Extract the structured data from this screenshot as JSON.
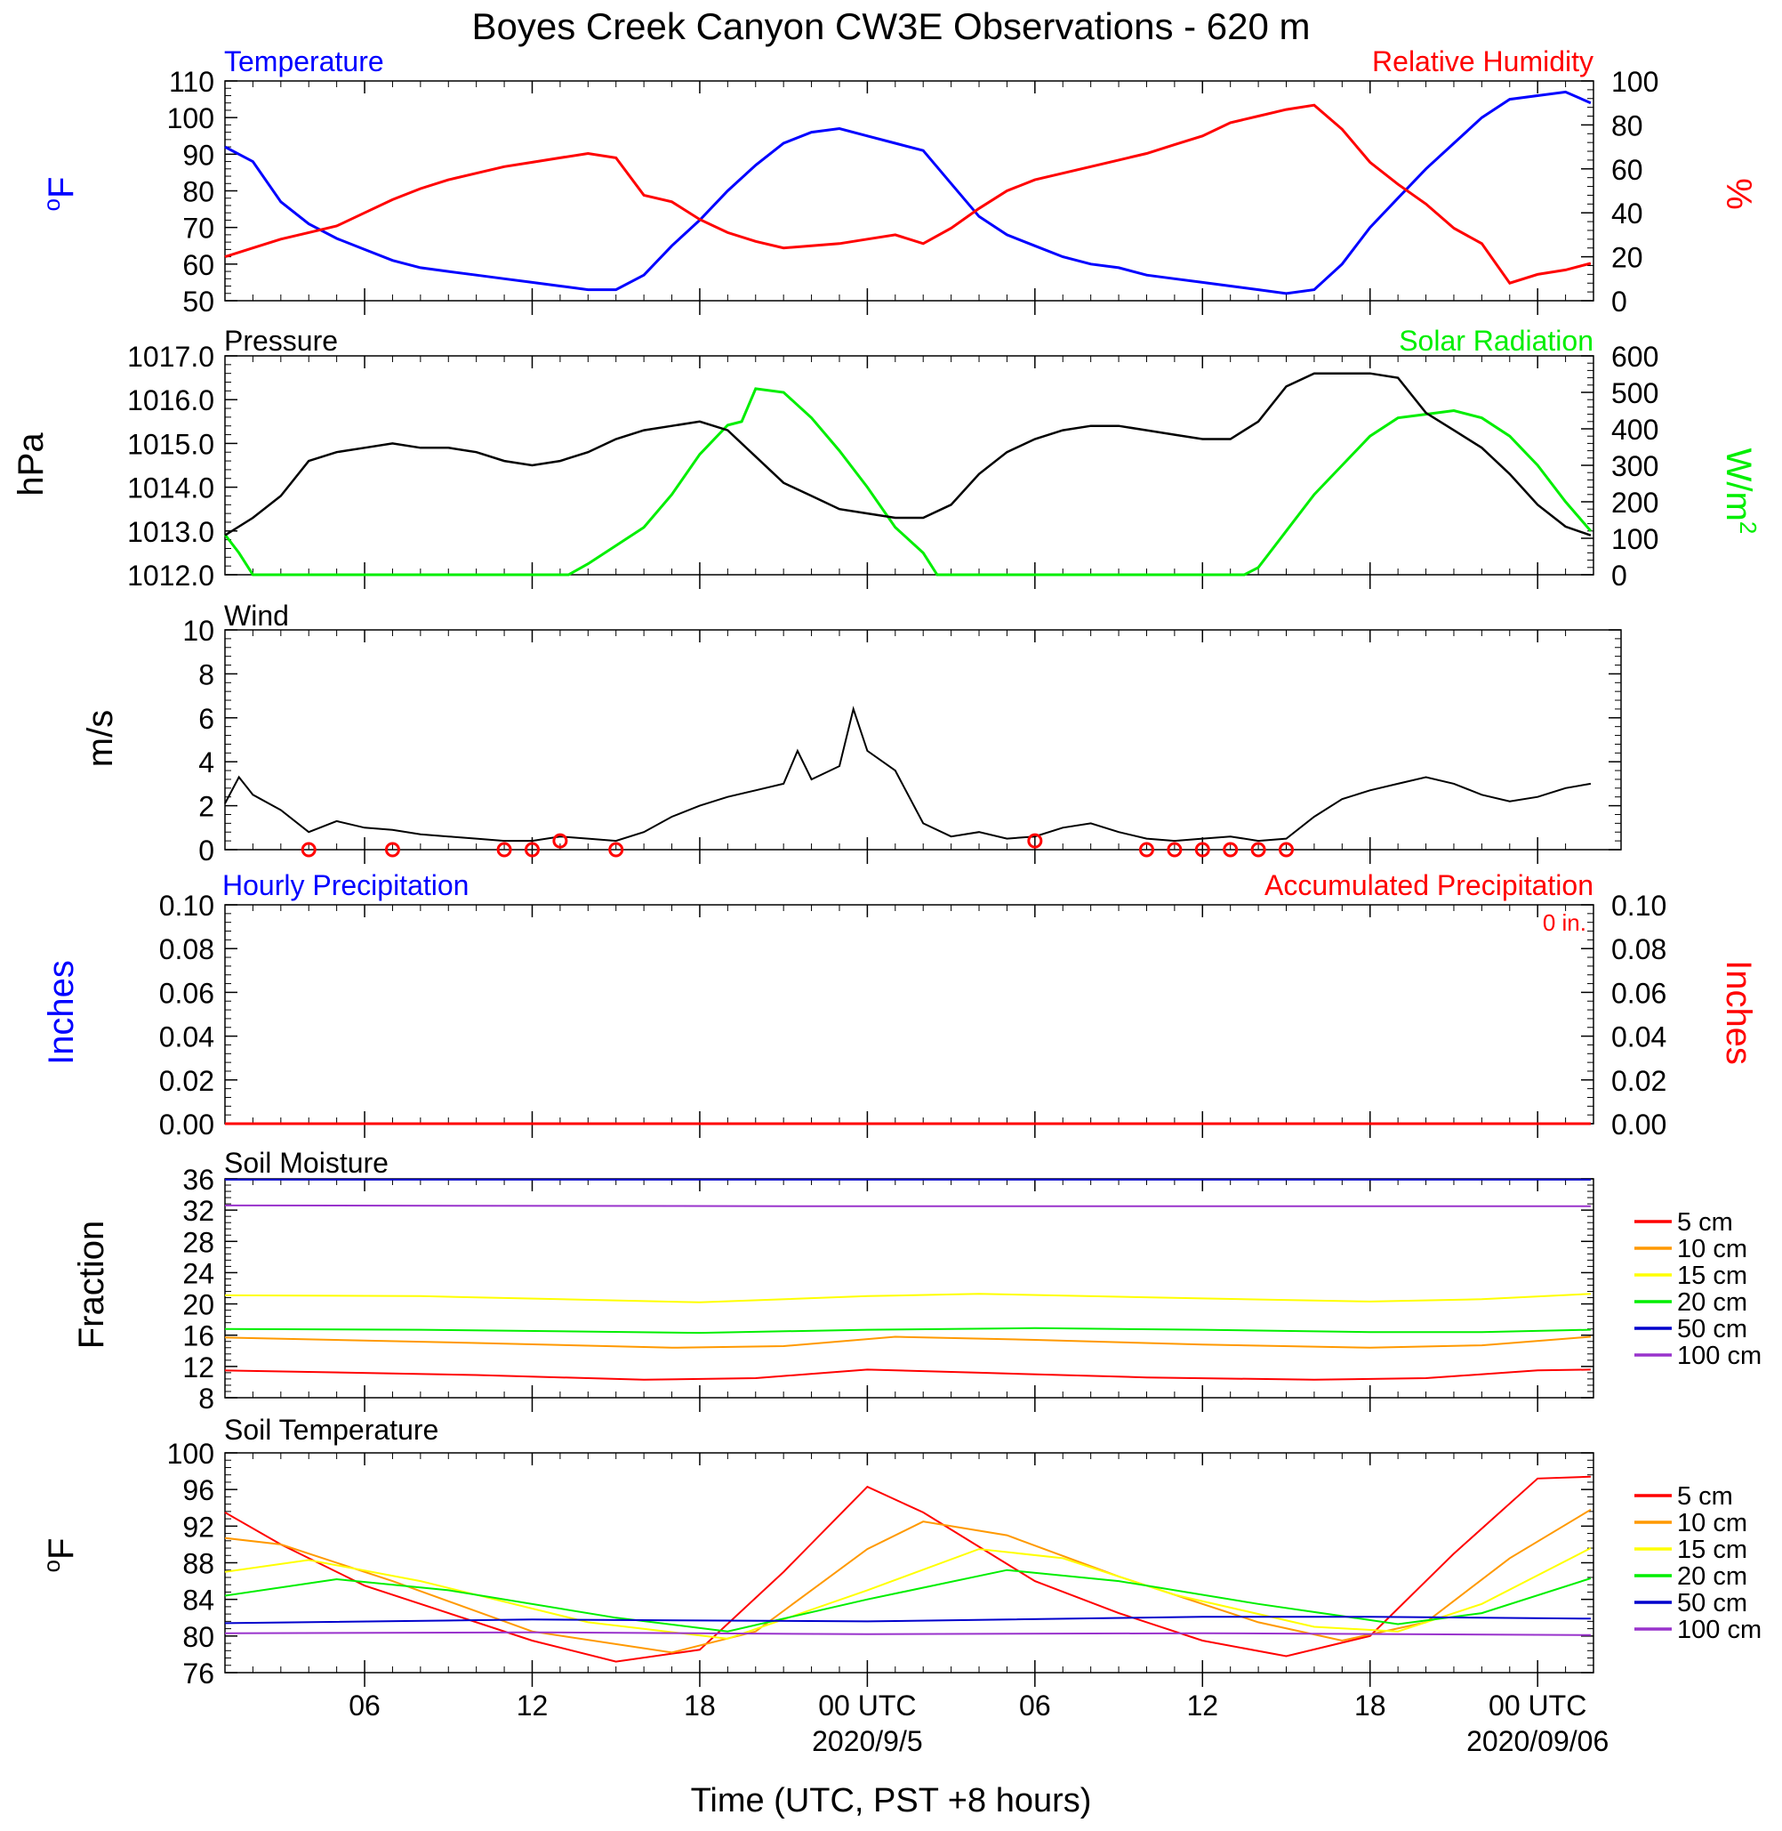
{
  "title": "Boyes Creek Canyon CW3E Observations - 620 m",
  "xlabel": "Time (UTC, PST +8 hours)",
  "x_axis": {
    "tick_labels": [
      "06",
      "12",
      "18",
      "00 UTC",
      "06",
      "12",
      "18",
      "00 UTC"
    ],
    "tick_hours": [
      6,
      12,
      18,
      24,
      30,
      36,
      42,
      48
    ],
    "date_labels": [
      "2020/9/5",
      "2020/09/06"
    ],
    "date_label_hours": [
      24,
      48
    ],
    "range_hours": [
      1,
      50
    ]
  },
  "colors": {
    "temperature": "#0000ff",
    "relative_humidity": "#ff0000",
    "pressure": "#000000",
    "solar_radiation": "#00ee00",
    "wind_speed": "#000000",
    "wind_barbs": "#ff0000",
    "hourly_precip": "#0000ff",
    "accum_precip": "#ff0000",
    "depth_5cm": "#ff0000",
    "depth_10cm": "#ff9900",
    "depth_15cm": "#ffff00",
    "depth_20cm": "#00ee00",
    "depth_50cm": "#0000cc",
    "depth_100cm": "#9933cc"
  },
  "panels": {
    "temp_rh": {
      "left_title": "Temperature",
      "right_title": "Relative Humidity",
      "left_unit": "oF",
      "right_unit": "%",
      "left_ticks": [
        "50",
        "60",
        "70",
        "80",
        "90",
        "100",
        "110"
      ],
      "right_ticks": [
        "0",
        "20",
        "40",
        "60",
        "80",
        "100"
      ]
    },
    "pressure_solar": {
      "left_title": "Pressure",
      "right_title": "Solar Radiation",
      "left_unit": "hPa",
      "right_unit": "W/m2",
      "left_ticks": [
        "1012.0",
        "1013.0",
        "1014.0",
        "1015.0",
        "1016.0",
        "1017.0"
      ],
      "right_ticks": [
        "0",
        "100",
        "200",
        "300",
        "400",
        "500",
        "600"
      ]
    },
    "wind": {
      "left_title": "Wind",
      "left_unit": "m/s",
      "left_ticks": [
        "0",
        "2",
        "4",
        "6",
        "8",
        "10"
      ]
    },
    "precip": {
      "left_title": "Hourly Precipitation",
      "right_title": "Accumulated Precipitation",
      "annotation": "0 in.",
      "left_unit": "Inches",
      "right_unit": "Inches",
      "left_ticks": [
        "0.00",
        "0.02",
        "0.04",
        "0.06",
        "0.08",
        "0.10"
      ],
      "right_ticks": [
        "0.00",
        "0.02",
        "0.04",
        "0.06",
        "0.08",
        "0.10"
      ]
    },
    "soil_moisture": {
      "left_title": "Soil Moisture",
      "left_unit": "Fraction",
      "left_ticks": [
        "8",
        "12",
        "16",
        "20",
        "24",
        "28",
        "32",
        "36"
      ],
      "legend": [
        "5 cm",
        "10 cm",
        "15 cm",
        "20 cm",
        "50 cm",
        "100 cm"
      ]
    },
    "soil_temp": {
      "left_title": "Soil Temperature",
      "left_unit": "oF",
      "left_ticks": [
        "76",
        "80",
        "84",
        "88",
        "92",
        "96",
        "100"
      ],
      "legend": [
        "5 cm",
        "10 cm",
        "15 cm",
        "20 cm",
        "50 cm",
        "100 cm"
      ]
    }
  },
  "chart_data": [
    {
      "type": "line",
      "x_unit": "hours since 2020-09-04 00 UTC",
      "ylim_left": [
        50,
        110
      ],
      "ylim_right": [
        0,
        100
      ],
      "grid": false,
      "series": [
        {
          "name": "Temperature",
          "axis": "left",
          "x": [
            1,
            2,
            3,
            4,
            5,
            6,
            7,
            8,
            9,
            10,
            11,
            12,
            13,
            14,
            15,
            16,
            17,
            18,
            19,
            20,
            21,
            22,
            23,
            24,
            25,
            26,
            27,
            28,
            29,
            30,
            31,
            32,
            33,
            34,
            35,
            36,
            37,
            38,
            39,
            40,
            41,
            42,
            43,
            44,
            45,
            46,
            47,
            48,
            49,
            49.9
          ],
          "y": [
            92,
            88,
            77,
            71,
            67,
            64,
            61,
            59,
            58,
            57,
            56,
            55,
            54,
            53,
            53,
            57,
            65,
            72,
            80,
            87,
            93,
            96,
            97,
            95,
            93,
            91,
            82,
            73,
            68,
            65,
            62,
            60,
            59,
            57,
            56,
            55,
            54,
            53,
            52,
            53,
            60,
            70,
            78,
            86,
            93,
            100,
            105,
            106,
            107,
            104
          ]
        },
        {
          "name": "Relative Humidity",
          "axis": "right",
          "x": [
            1,
            2,
            3,
            4,
            5,
            6,
            7,
            8,
            9,
            10,
            11,
            12,
            13,
            14,
            15,
            16,
            17,
            18,
            19,
            20,
            21,
            22,
            23,
            24,
            25,
            26,
            27,
            28,
            29,
            30,
            31,
            32,
            33,
            34,
            35,
            36,
            37,
            38,
            39,
            40,
            41,
            42,
            43,
            44,
            45,
            46,
            47,
            48,
            49,
            49.9
          ],
          "y": [
            20,
            24,
            28,
            31,
            34,
            40,
            46,
            51,
            55,
            58,
            61,
            63,
            65,
            67,
            65,
            48,
            45,
            37,
            31,
            27,
            24,
            25,
            26,
            28,
            30,
            26,
            33,
            42,
            50,
            55,
            58,
            61,
            64,
            67,
            71,
            75,
            81,
            84,
            87,
            89,
            78,
            63,
            53,
            44,
            33,
            26,
            8,
            12,
            14,
            17
          ]
        }
      ]
    },
    {
      "type": "line",
      "x_unit": "hours since 2020-09-04 00 UTC",
      "ylim_left": [
        1012.0,
        1017.0
      ],
      "ylim_right": [
        0,
        600
      ],
      "grid": false,
      "series": [
        {
          "name": "Pressure",
          "axis": "left",
          "x": [
            1,
            2,
            3,
            4,
            5,
            6,
            7,
            8,
            9,
            10,
            11,
            12,
            13,
            14,
            15,
            16,
            17,
            18,
            19,
            20,
            21,
            22,
            23,
            24,
            25,
            26,
            27,
            28,
            29,
            30,
            31,
            32,
            33,
            34,
            35,
            36,
            37,
            38,
            39,
            40,
            41,
            42,
            43,
            44,
            45,
            46,
            47,
            48,
            49,
            49.9
          ],
          "y": [
            1012.9,
            1013.3,
            1013.8,
            1014.6,
            1014.8,
            1014.9,
            1015.0,
            1014.9,
            1014.9,
            1014.8,
            1014.6,
            1014.5,
            1014.6,
            1014.8,
            1015.1,
            1015.3,
            1015.4,
            1015.5,
            1015.3,
            1014.7,
            1014.1,
            1013.8,
            1013.5,
            1013.4,
            1013.3,
            1013.3,
            1013.6,
            1014.3,
            1014.8,
            1015.1,
            1015.3,
            1015.4,
            1015.4,
            1015.3,
            1015.2,
            1015.1,
            1015.1,
            1015.5,
            1016.3,
            1016.6,
            1016.6,
            1016.6,
            1016.5,
            1015.7,
            1015.3,
            1014.9,
            1014.3,
            1013.6,
            1013.1,
            1012.9
          ]
        },
        {
          "name": "Solar Radiation",
          "axis": "right",
          "x": [
            1,
            1.5,
            2,
            13.3,
            14,
            15,
            16,
            17,
            18,
            19,
            19.5,
            20,
            21,
            22,
            23,
            24,
            25,
            26,
            26.5,
            27,
            37.5,
            38,
            39,
            40,
            41,
            42,
            43,
            44,
            45,
            46,
            47,
            48,
            49,
            49.9
          ],
          "y": [
            110,
            60,
            0,
            0,
            30,
            80,
            130,
            220,
            330,
            410,
            420,
            510,
            500,
            430,
            340,
            240,
            130,
            60,
            0,
            0,
            0,
            20,
            120,
            220,
            300,
            380,
            430,
            440,
            450,
            430,
            380,
            300,
            200,
            120
          ]
        }
      ]
    },
    {
      "type": "line",
      "x_unit": "hours since 2020-09-04 00 UTC",
      "ylim": [
        0,
        10
      ],
      "grid": false,
      "series": [
        {
          "name": "Wind",
          "x": [
            1,
            1.5,
            2,
            3,
            4,
            5,
            6,
            7,
            8,
            9,
            10,
            11,
            12,
            13,
            14,
            15,
            16,
            17,
            18,
            19,
            20,
            21,
            21.5,
            22,
            23,
            23.5,
            24,
            25,
            26,
            27,
            28,
            29,
            30,
            31,
            32,
            33,
            34,
            35,
            36,
            37,
            38,
            39,
            40,
            41,
            42,
            43,
            44,
            45,
            46,
            47,
            48,
            49,
            49.9
          ],
          "y": [
            2.1,
            3.3,
            2.5,
            1.8,
            0.8,
            1.3,
            1.0,
            0.9,
            0.7,
            0.6,
            0.5,
            0.4,
            0.4,
            0.6,
            0.5,
            0.4,
            0.8,
            1.5,
            2.0,
            2.4,
            2.7,
            3.0,
            4.5,
            3.2,
            3.8,
            6.4,
            4.5,
            3.6,
            1.2,
            0.6,
            0.8,
            0.5,
            0.6,
            1.0,
            1.2,
            0.8,
            0.5,
            0.4,
            0.5,
            0.6,
            0.4,
            0.5,
            1.5,
            2.3,
            2.7,
            3.0,
            3.3,
            3.0,
            2.5,
            2.2,
            2.4,
            2.8,
            3.0
          ]
        },
        {
          "name": "Wind barbs (calm circles)",
          "marker": "circle",
          "x": [
            4,
            7,
            11,
            12,
            13,
            15,
            30,
            34,
            35,
            36,
            37,
            38,
            39
          ],
          "y": [
            0,
            0,
            0,
            0,
            0.4,
            0,
            0.4,
            0,
            0,
            0,
            0,
            0,
            0
          ]
        }
      ]
    },
    {
      "type": "line",
      "x_unit": "hours since 2020-09-04 00 UTC",
      "ylim_left": [
        0.0,
        0.1
      ],
      "ylim_right": [
        0.0,
        0.1
      ],
      "grid": false,
      "series": [
        {
          "name": "Hourly Precipitation",
          "axis": "left",
          "x": [
            1,
            49.9
          ],
          "y": [
            0,
            0
          ]
        },
        {
          "name": "Accumulated Precipitation",
          "axis": "right",
          "x": [
            1,
            49.9
          ],
          "y": [
            0,
            0
          ]
        }
      ]
    },
    {
      "type": "line",
      "x_unit": "hours since 2020-09-04 00 UTC",
      "ylim": [
        8,
        36
      ],
      "grid": false,
      "series": [
        {
          "name": "5 cm",
          "x": [
            1,
            10,
            16,
            20,
            24,
            28,
            34,
            40,
            44,
            48,
            49.9
          ],
          "y": [
            11.5,
            10.9,
            10.3,
            10.5,
            11.6,
            11.2,
            10.6,
            10.3,
            10.5,
            11.5,
            11.6
          ]
        },
        {
          "name": "10 cm",
          "x": [
            1,
            10,
            17,
            21,
            25,
            30,
            36,
            42,
            46,
            49.9
          ],
          "y": [
            15.7,
            15.0,
            14.4,
            14.6,
            15.8,
            15.4,
            14.8,
            14.4,
            14.7,
            15.8
          ]
        },
        {
          "name": "15 cm",
          "x": [
            1,
            8,
            18,
            24,
            28,
            36,
            42,
            46,
            49.9
          ],
          "y": [
            21.1,
            21.0,
            20.2,
            21.0,
            21.3,
            20.7,
            20.3,
            20.6,
            21.3
          ]
        },
        {
          "name": "20 cm",
          "x": [
            1,
            8,
            18,
            24,
            30,
            36,
            42,
            46,
            49.9
          ],
          "y": [
            16.8,
            16.7,
            16.3,
            16.7,
            16.9,
            16.7,
            16.4,
            16.4,
            16.7
          ]
        },
        {
          "name": "50 cm",
          "x": [
            1,
            49.9
          ],
          "y": [
            35.9,
            35.9
          ]
        },
        {
          "name": "100 cm",
          "x": [
            1,
            24,
            49.9
          ],
          "y": [
            32.6,
            32.5,
            32.5
          ]
        }
      ]
    },
    {
      "type": "line",
      "x_unit": "hours since 2020-09-04 00 UTC",
      "ylim": [
        76,
        100
      ],
      "grid": false,
      "series": [
        {
          "name": "5 cm",
          "x": [
            1,
            3,
            6,
            9,
            12,
            15,
            18,
            21,
            24,
            26,
            30,
            33,
            36,
            39,
            42,
            45,
            48,
            49.9
          ],
          "y": [
            93.5,
            90.0,
            85.5,
            82.5,
            79.5,
            77.2,
            78.5,
            87.0,
            96.3,
            93.5,
            86.0,
            82.5,
            79.5,
            77.8,
            80.0,
            89.0,
            97.2,
            97.4
          ]
        },
        {
          "name": "10 cm",
          "x": [
            1,
            3,
            7,
            12,
            17,
            20,
            24,
            26,
            29,
            33,
            38,
            41,
            44,
            47,
            49.9
          ],
          "y": [
            90.7,
            90.0,
            86.0,
            80.5,
            78.2,
            80.5,
            89.5,
            92.5,
            91.0,
            86.5,
            81.5,
            79.5,
            81.5,
            88.5,
            93.8
          ]
        },
        {
          "name": "15 cm",
          "x": [
            1,
            4,
            8,
            14,
            19,
            24,
            28,
            31,
            35,
            40,
            43,
            46,
            49.9
          ],
          "y": [
            87.0,
            88.3,
            86.0,
            81.5,
            79.7,
            85.0,
            89.5,
            88.5,
            84.5,
            81.0,
            80.5,
            83.5,
            89.6
          ]
        },
        {
          "name": "20 cm",
          "x": [
            1,
            5,
            9,
            15,
            19,
            24,
            29,
            33,
            38,
            43,
            46,
            49.9
          ],
          "y": [
            84.4,
            86.2,
            85.0,
            82.0,
            80.5,
            84.0,
            87.2,
            86.0,
            83.5,
            81.3,
            82.5,
            86.3
          ]
        },
        {
          "name": "50 cm",
          "x": [
            1,
            12,
            24,
            36,
            42,
            49.9
          ],
          "y": [
            81.4,
            81.8,
            81.6,
            82.1,
            82.1,
            81.9
          ]
        },
        {
          "name": "100 cm",
          "x": [
            1,
            12,
            24,
            36,
            49.9
          ],
          "y": [
            80.3,
            80.4,
            80.2,
            80.3,
            80.1
          ]
        }
      ]
    }
  ]
}
